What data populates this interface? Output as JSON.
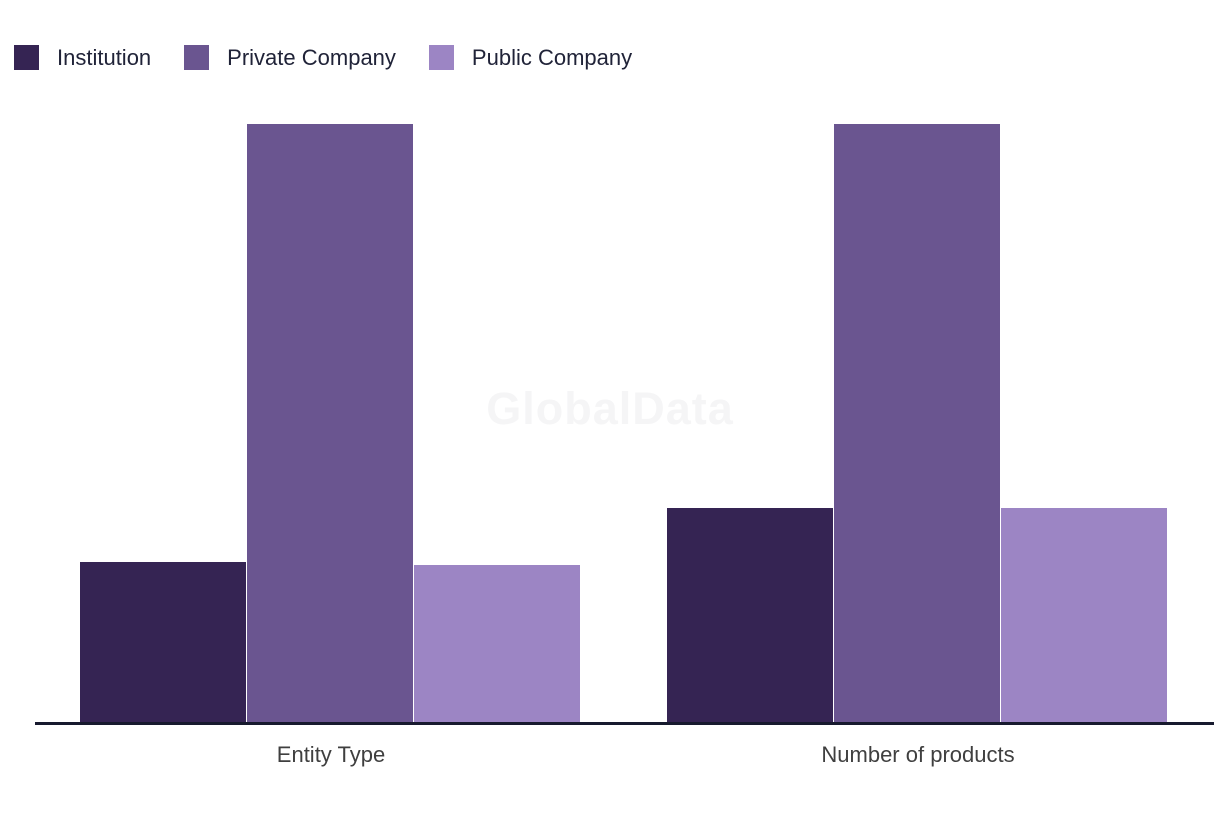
{
  "chart": {
    "watermark_text": "GlobalData",
    "axis_color": "#171a2e",
    "legend_text_color": "#202338",
    "category_label_color": "#3f3f3f",
    "background_color": "#ffffff"
  },
  "chart_data": {
    "type": "bar",
    "categories": [
      "Entity Type",
      "Number of products"
    ],
    "series": [
      {
        "name": "Institution",
        "color": "#352453",
        "values": [
          27,
          36
        ]
      },
      {
        "name": "Private Company",
        "color": "#6a5590",
        "values": [
          100,
          100
        ]
      },
      {
        "name": "Public Company",
        "color": "#9c85c4",
        "values": [
          26.5,
          36
        ]
      }
    ],
    "title": "",
    "xlabel": "",
    "ylabel": "",
    "ylim": [
      0,
      100
    ],
    "y_axis_visible": false,
    "grid": false,
    "legend_position": "top-left",
    "watermark": "GlobalData"
  }
}
